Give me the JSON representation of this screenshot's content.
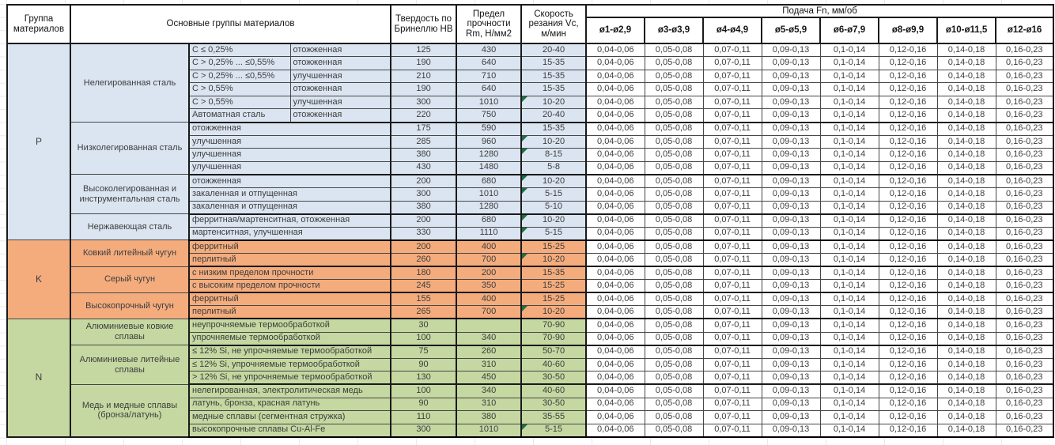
{
  "colors": {
    "group_p_bg": "#dbe5f1",
    "group_k_bg": "#f4ac7d",
    "group_n_bg": "#c5d8a1",
    "flag_green": "#1d7044",
    "grid_border": "#474747"
  },
  "header": {
    "col_group": "Группа материалов",
    "col_main": "Основные группы материалов",
    "col_hb": "Твердость по Бринеллю HB",
    "col_rm": "Предел прочности Rm, Н/мм2",
    "col_vc": "Скорость резания Vc, м/мин",
    "feed_title": "Подача Fn, мм/об",
    "feed_cols": [
      "ø1-ø2,9",
      "ø3-ø3,9",
      "ø4-ø4,9",
      "ø5-ø5,9",
      "ø6-ø7,9",
      "ø8-ø9,9",
      "ø10-ø11,5",
      "ø12-ø16"
    ]
  },
  "feed_values": [
    "0,04-0,06",
    "0,05-0,08",
    "0,07-0,11",
    "0,09-0,13",
    "0,1-0,14",
    "0,12-0,16",
    "0,14-0,18",
    "0,16-0,23"
  ],
  "groups": [
    {
      "code": "P",
      "subgroups": [
        {
          "name": "Нелегированная сталь",
          "rows": [
            {
              "c": "C ≤ 0,25%",
              "state": "отожженная",
              "hb": "125",
              "rm": "430",
              "vc": "20-40",
              "flag": false
            },
            {
              "c": "C > 0,25% ... ≤0,55%",
              "state": "отожженная",
              "hb": "190",
              "rm": "640",
              "vc": "15-35",
              "flag": false
            },
            {
              "c": "C > 0,25% ... ≤0,55%",
              "state": "улучшенная",
              "hb": "210",
              "rm": "710",
              "vc": "15-35",
              "flag": false
            },
            {
              "c": "C > 0,55%",
              "state": "отожженная",
              "hb": "190",
              "rm": "640",
              "vc": "15-35",
              "flag": false
            },
            {
              "c": "C > 0,55%",
              "state": "улучшенная",
              "hb": "300",
              "rm": "1010",
              "vc": "10-20",
              "flag": true
            },
            {
              "c": "Автоматная сталь",
              "state": "отожженная",
              "hb": "220",
              "rm": "750",
              "vc": "20-40",
              "flag": false
            }
          ]
        },
        {
          "name": "Низколегированная сталь",
          "rows": [
            {
              "desc": "отожженная",
              "hb": "175",
              "rm": "590",
              "vc": "15-35",
              "flag": false
            },
            {
              "desc": "улучшенная",
              "hb": "285",
              "rm": "960",
              "vc": "10-20",
              "flag": true
            },
            {
              "desc": "улучшенная",
              "hb": "380",
              "rm": "1280",
              "vc": "8-15",
              "flag": true
            },
            {
              "desc": "улучшенная",
              "hb": "430",
              "rm": "1480",
              "vc": "5-8",
              "flag": false
            }
          ]
        },
        {
          "name": "Высоколегированная и инструментальная сталь",
          "rows": [
            {
              "desc": "отожженная",
              "hb": "200",
              "rm": "680",
              "vc": "10-20",
              "flag": true
            },
            {
              "desc": "закаленная и отпущенная",
              "hb": "300",
              "rm": "1010",
              "vc": "5-15",
              "flag": true
            },
            {
              "desc": "закаленная и отпущенная",
              "hb": "380",
              "rm": "1280",
              "vc": "5-10",
              "flag": false
            }
          ]
        },
        {
          "name": "Нержавеющая сталь",
          "rows": [
            {
              "desc": "ферритная/мартенситная, отожженная",
              "hb": "200",
              "rm": "680",
              "vc": "10-20",
              "flag": true
            },
            {
              "desc": "мартенситная, улучшенная",
              "hb": "330",
              "rm": "1110",
              "vc": "5-15",
              "flag": true
            }
          ]
        }
      ]
    },
    {
      "code": "K",
      "subgroups": [
        {
          "name": "Ковкий литейный чугун",
          "rows": [
            {
              "desc": "ферритный",
              "hb": "200",
              "rm": "400",
              "vc": "15-25",
              "flag": false
            },
            {
              "desc": "перлитный",
              "hb": "260",
              "rm": "700",
              "vc": "10-20",
              "flag": true
            }
          ]
        },
        {
          "name": "Серый чугун",
          "rows": [
            {
              "desc": "с низким пределом прочности",
              "hb": "180",
              "rm": "200",
              "vc": "15-35",
              "flag": false
            },
            {
              "desc": "с высоким пределом прочности",
              "hb": "245",
              "rm": "350",
              "vc": "15-25",
              "flag": false
            }
          ]
        },
        {
          "name": "Высокопрочный чугун",
          "rows": [
            {
              "desc": "ферритный",
              "hb": "155",
              "rm": "400",
              "vc": "15-25",
              "flag": false
            },
            {
              "desc": "перлитный",
              "hb": "265",
              "rm": "700",
              "vc": "10-20",
              "flag": true
            }
          ]
        }
      ]
    },
    {
      "code": "N",
      "subgroups": [
        {
          "name": "Алюминиевые ковкие сплавы",
          "rows": [
            {
              "desc": "неупрочняемые термообработкой",
              "hb": "30",
              "rm": "",
              "vc": "70-90",
              "flag": false
            },
            {
              "desc": "упрочняемые термообработкой",
              "hb": "100",
              "rm": "340",
              "vc": "70-90",
              "flag": false
            }
          ]
        },
        {
          "name": "Алюминиевые литейные сплавы",
          "rows": [
            {
              "desc": "≤ 12% Si, не упрочняемые термообработкой",
              "hb": "75",
              "rm": "260",
              "vc": "50-70",
              "flag": false
            },
            {
              "desc": "≤ 12% Si, упрочняемые термообработкой",
              "hb": "90",
              "rm": "310",
              "vc": "40-60",
              "flag": false
            },
            {
              "desc": "> 12% Si, не упрочняемые термообработкой",
              "hb": "130",
              "rm": "450",
              "vc": "30-50",
              "flag": false
            }
          ]
        },
        {
          "name": "Медь и медные сплавы (бронза/латунь)",
          "rows": [
            {
              "desc": "нелегированная, электролитическая медь",
              "hb": "100",
              "rm": "340",
              "vc": "40-60",
              "flag": false
            },
            {
              "desc": "латунь, бронза, красная латунь",
              "hb": "90",
              "rm": "310",
              "vc": "30-50",
              "flag": false
            },
            {
              "desc": "медные сплавы (сегментная стружка)",
              "hb": "110",
              "rm": "380",
              "vc": "35-55",
              "flag": false
            },
            {
              "desc": "высокопрочные сплавы Cu-Al-Fe",
              "hb": "300",
              "rm": "1010",
              "vc": "5-15",
              "flag": true
            }
          ]
        }
      ]
    }
  ]
}
